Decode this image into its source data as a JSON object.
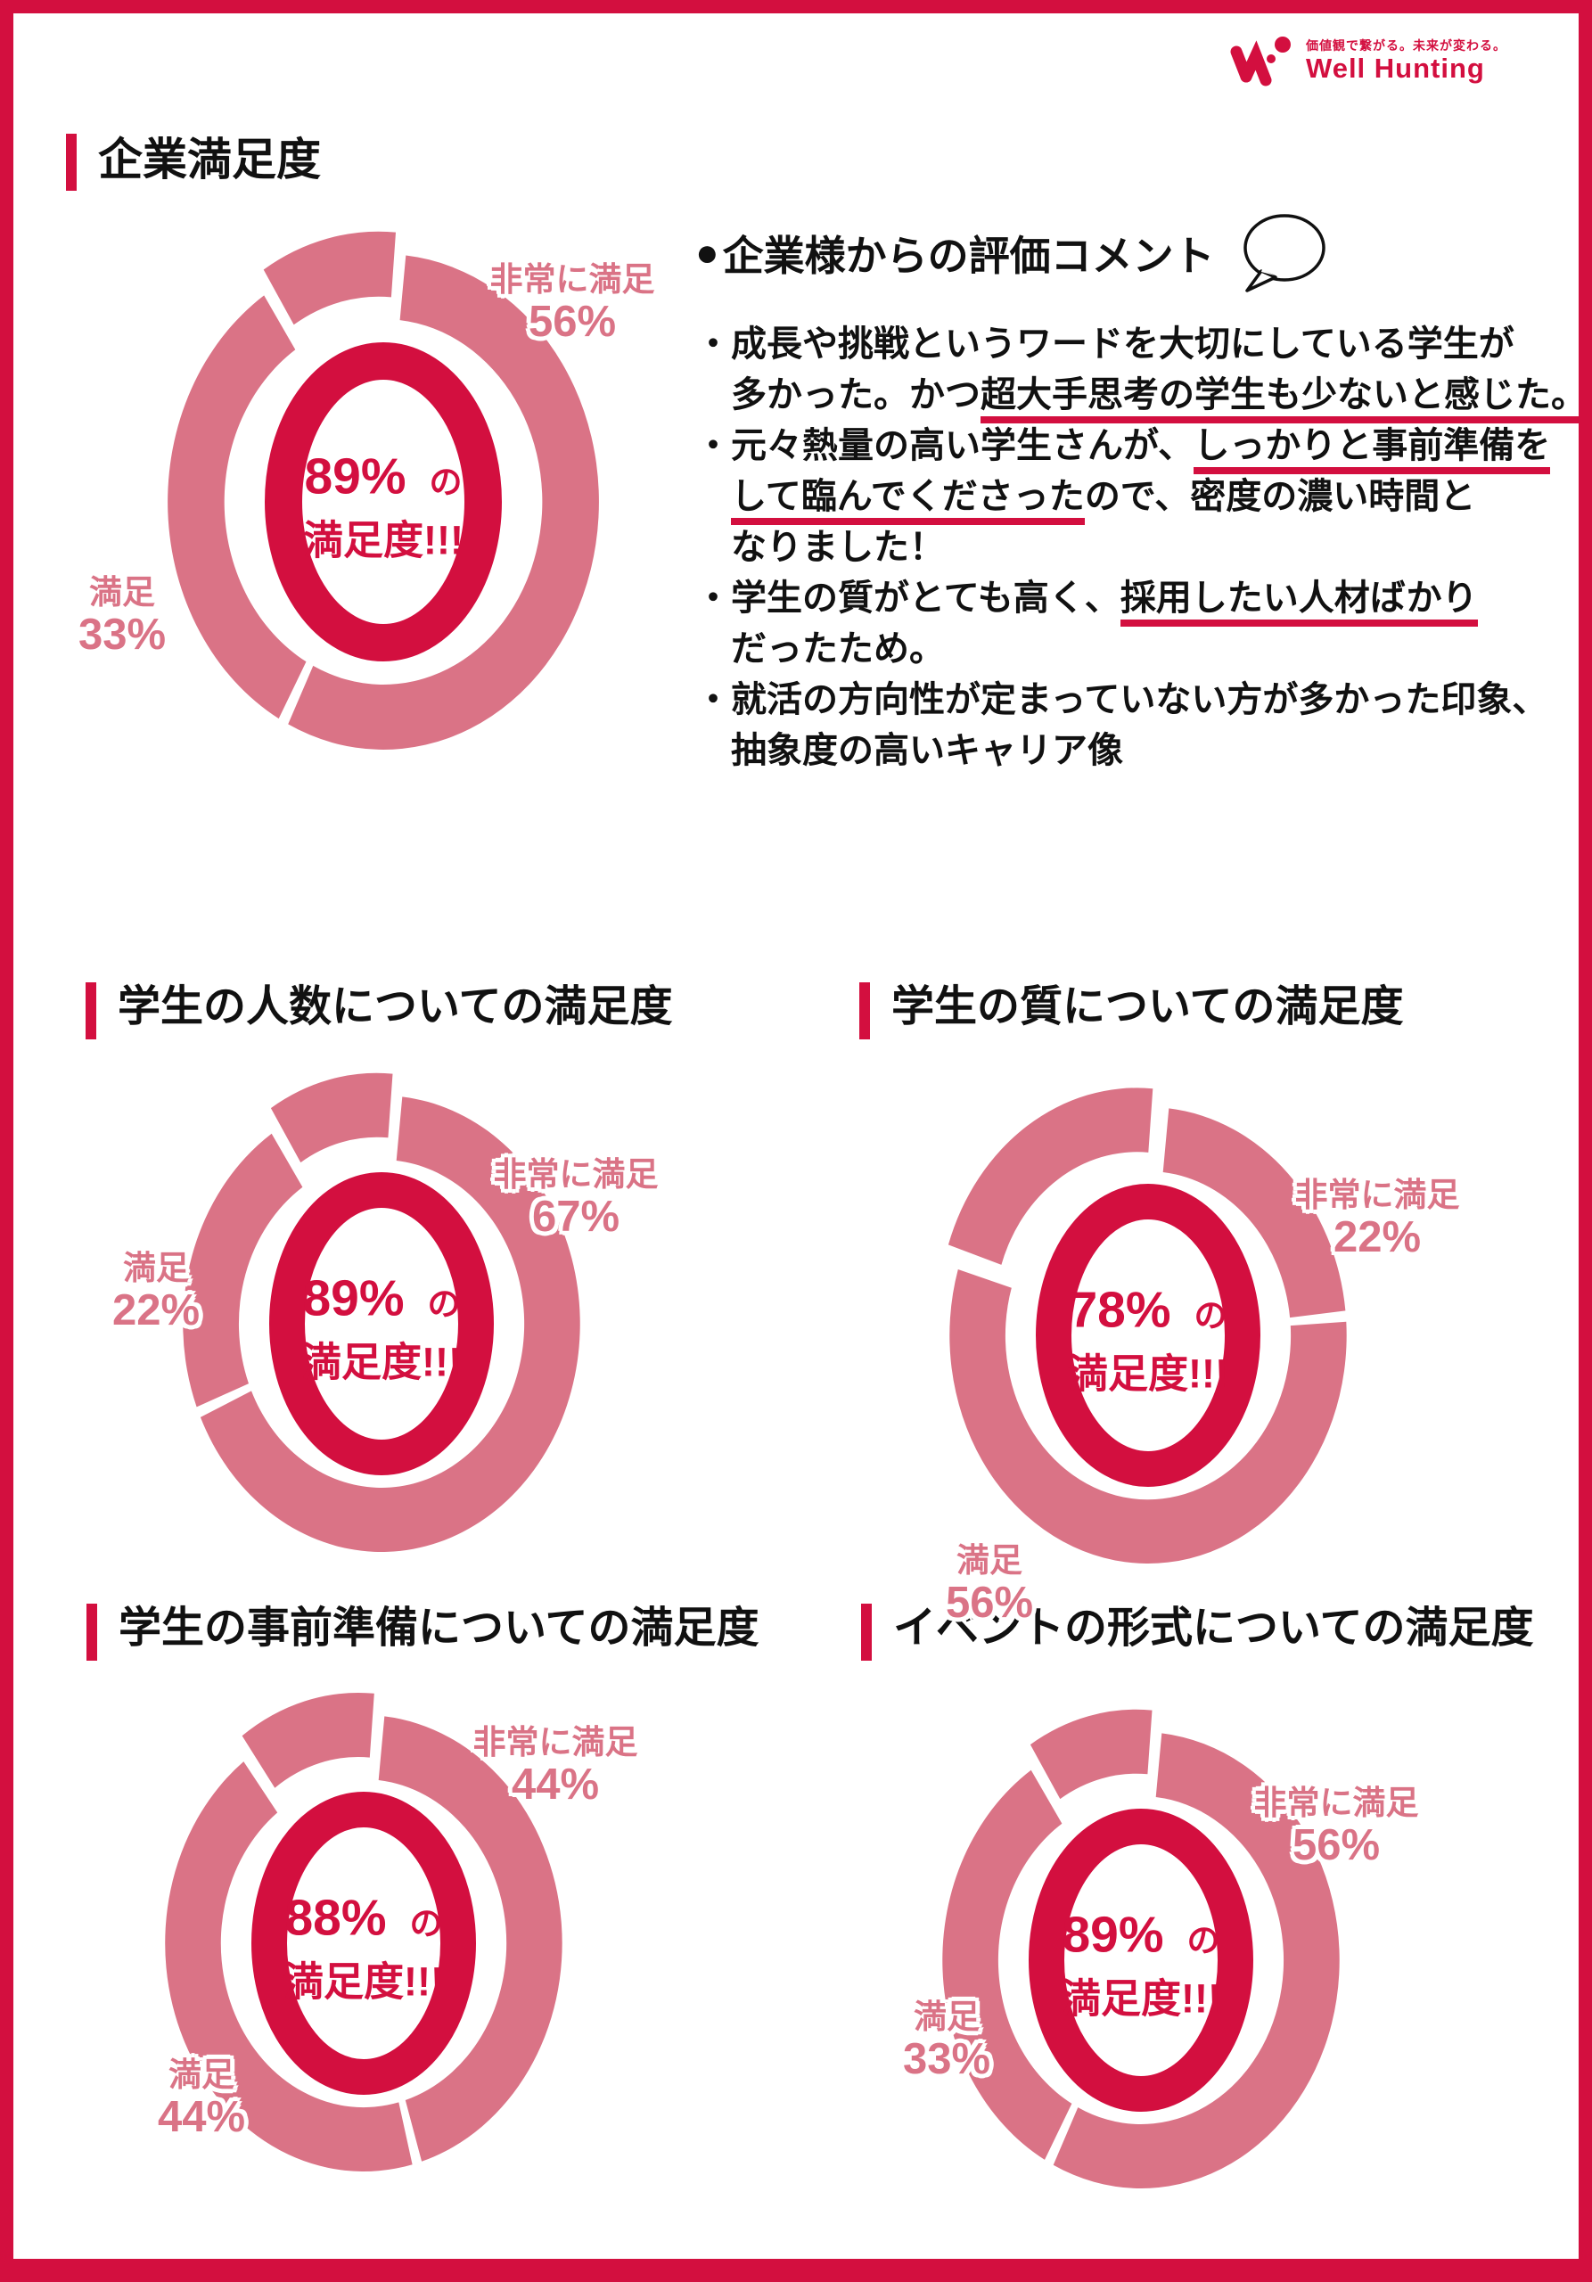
{
  "brand": {
    "tagline": "価値観で繋がる。未来が変わる。",
    "name": "Well Hunting"
  },
  "colors": {
    "crimson": "#D30F3F",
    "pink": "#DA7386",
    "text": "#111111"
  },
  "comments": {
    "bullet_glyph": "●",
    "heading": "企業様からの評価コメント",
    "icon": "speech-bubble-icon",
    "lines": [
      {
        "indent": false,
        "parts": [
          {
            "t": "・成長や挑戦というワードを大切にしている学生が",
            "u": false
          }
        ]
      },
      {
        "indent": true,
        "parts": [
          {
            "t": "多かった。かつ",
            "u": false
          },
          {
            "t": "超大手思考の学生も少ないと感じた。",
            "u": true
          }
        ]
      },
      {
        "indent": false,
        "parts": [
          {
            "t": "・元々熱量の高い学生さんが、",
            "u": false
          },
          {
            "t": "しっかりと事前準備を",
            "u": true
          }
        ]
      },
      {
        "indent": true,
        "parts": [
          {
            "t": "して臨んでくださった",
            "u": true
          },
          {
            "t": "ので、密度の濃い時間と",
            "u": false
          }
        ]
      },
      {
        "indent": true,
        "parts": [
          {
            "t": "なりました！",
            "u": false
          }
        ]
      },
      {
        "indent": false,
        "parts": [
          {
            "t": "・学生の質がとても高く、",
            "u": false
          },
          {
            "t": "採用したい人材ばかり",
            "u": true
          }
        ]
      },
      {
        "indent": true,
        "parts": [
          {
            "t": "だったため。",
            "u": false
          }
        ]
      },
      {
        "indent": false,
        "parts": [
          {
            "t": "・就活の方向性が定まっていない方が多かった印象、",
            "u": false
          }
        ]
      },
      {
        "indent": true,
        "parts": [
          {
            "t": "抽象度の高いキャリア像",
            "u": false
          }
        ]
      }
    ]
  },
  "chart_data": [
    {
      "type": "pie",
      "variant": "donut",
      "title": "企業満足度",
      "slices": [
        {
          "label": "非常に満足",
          "value": 56,
          "display": "56%"
        },
        {
          "label": "満足",
          "value": 33,
          "display": "33%"
        }
      ],
      "unlabeled_remainder": 11,
      "center": {
        "value": "89%",
        "particle": "の",
        "sub": "満足度!!!"
      }
    },
    {
      "type": "pie",
      "variant": "donut",
      "title": "学生の人数についての満足度",
      "slices": [
        {
          "label": "非常に満足",
          "value": 67,
          "display": "67%"
        },
        {
          "label": "満足",
          "value": 22,
          "display": "22%"
        }
      ],
      "unlabeled_remainder": 11,
      "center": {
        "value": "89%",
        "particle": "の",
        "sub": "満足度!!!"
      }
    },
    {
      "type": "pie",
      "variant": "donut",
      "title": "学生の質についての満足度",
      "slices": [
        {
          "label": "非常に満足",
          "value": 22,
          "display": "22%"
        },
        {
          "label": "満足",
          "value": 56,
          "display": "56%"
        }
      ],
      "unlabeled_remainder": 22,
      "center": {
        "value": "78%",
        "particle": "の",
        "sub": "満足度!!!"
      }
    },
    {
      "type": "pie",
      "variant": "donut",
      "title": "学生の事前準備についての満足度",
      "slices": [
        {
          "label": "非常に満足",
          "value": 44,
          "display": "44%"
        },
        {
          "label": "満足",
          "value": 44,
          "display": "44%"
        }
      ],
      "unlabeled_remainder": 12,
      "center": {
        "value": "88%",
        "particle": "の",
        "sub": "満足度!!!"
      }
    },
    {
      "type": "pie",
      "variant": "donut",
      "title": "イベントの形式についての満足度",
      "slices": [
        {
          "label": "非常に満足",
          "value": 56,
          "display": "56%"
        },
        {
          "label": "満足",
          "value": 33,
          "display": "33%"
        }
      ],
      "unlabeled_remainder": 11,
      "center": {
        "value": "89%",
        "particle": "の",
        "sub": "満足度!!!"
      }
    }
  ]
}
